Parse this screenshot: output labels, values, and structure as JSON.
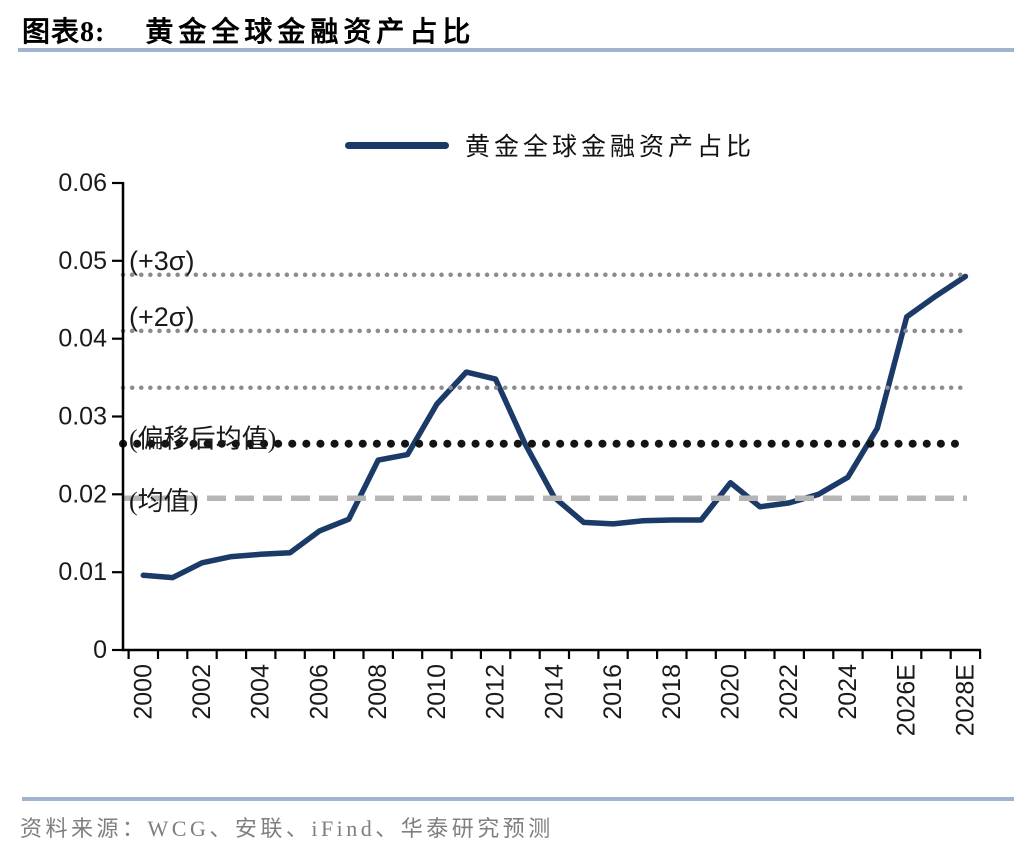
{
  "header": {
    "figure_label": "图表8:",
    "figure_title": "黄金全球金融资产占比"
  },
  "legend": {
    "label": "黄金全球金融资产占比"
  },
  "chart_data": {
    "type": "line",
    "title": "黄金全球金融资产占比",
    "legend_position": "top",
    "grid": false,
    "ylim": [
      0,
      0.06
    ],
    "y_ticks": [
      0,
      0.01,
      0.02,
      0.03,
      0.04,
      0.05,
      0.06
    ],
    "y_tick_labels": [
      "0",
      "0.01",
      "0.02",
      "0.03",
      "0.04",
      "0.05",
      "0.06"
    ],
    "x_tick_years": [
      2000,
      2002,
      2004,
      2006,
      2008,
      2010,
      2012,
      2014,
      2016,
      2018,
      2020,
      2022,
      2024,
      2026,
      2028
    ],
    "x_tick_labels": [
      "2000",
      "2002",
      "2004",
      "2006",
      "2008",
      "2010",
      "2012",
      "2014",
      "2016",
      "2018",
      "2020",
      "2022",
      "2024",
      "2026E",
      "2028E"
    ],
    "series": [
      {
        "name": "黄金全球金融资产占比",
        "color": "#1b3a67",
        "x": [
          2000,
          2001,
          2002,
          2003,
          2004,
          2005,
          2006,
          2007,
          2008,
          2009,
          2010,
          2011,
          2012,
          2013,
          2014,
          2015,
          2016,
          2017,
          2018,
          2019,
          2020,
          2021,
          2022,
          2023,
          2024,
          2025,
          2026,
          2027,
          2028
        ],
        "values": [
          0.0096,
          0.0093,
          0.0112,
          0.012,
          0.0123,
          0.0125,
          0.0153,
          0.0168,
          0.0244,
          0.0251,
          0.0316,
          0.0357,
          0.0348,
          0.0265,
          0.0196,
          0.0164,
          0.0162,
          0.0166,
          0.0167,
          0.0167,
          0.0215,
          0.0184,
          0.0189,
          0.02,
          0.0222,
          0.0285,
          0.0428,
          0.0455,
          0.048
        ]
      }
    ],
    "reference_lines": [
      {
        "label": "(+3σ)",
        "value": 0.0482,
        "style": "dotted",
        "color": "#8c8c8c"
      },
      {
        "label": "(+2σ)",
        "value": 0.041,
        "style": "dotted",
        "color": "#8c8c8c"
      },
      {
        "label": "",
        "value": 0.0337,
        "style": "dotted",
        "color": "#8c8c8c"
      },
      {
        "label": "(偏移后均值)",
        "value": 0.0265,
        "style": "dotted-bold",
        "color": "#141414"
      },
      {
        "label": "(均值)",
        "value": 0.0195,
        "style": "dashed",
        "color": "#b5b5b5"
      }
    ]
  },
  "source": {
    "text": "资料来源：WCG、安联、iFind、华泰研究预测"
  },
  "colors": {
    "series_line": "#1b3a67",
    "rule": "#a0b4ce",
    "axis": "#000000",
    "source_text": "#7f7f7f"
  }
}
